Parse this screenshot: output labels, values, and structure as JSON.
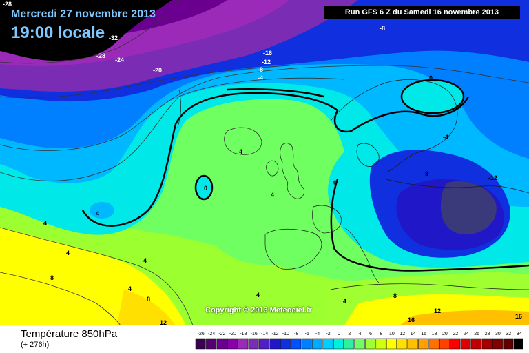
{
  "header": {
    "date": "Mercredi 27 novembre 2013",
    "hour": "19:00 locale",
    "run": "Run GFS 6 Z du Samedi 16 novembre 2013"
  },
  "copyright": "Copyright © 2013 Meteociel.fr",
  "legend": {
    "title": "Température 850hPa",
    "subtitle": "(+ 276h)",
    "scale": [
      {
        "value": "-26",
        "color": "#3a0050"
      },
      {
        "value": "-24",
        "color": "#550070"
      },
      {
        "value": "-22",
        "color": "#6b0090"
      },
      {
        "value": "-20",
        "color": "#8800a8"
      },
      {
        "value": "-18",
        "color": "#9b2ab8"
      },
      {
        "value": "-16",
        "color": "#7a2cb4"
      },
      {
        "value": "-14",
        "color": "#5020c0"
      },
      {
        "value": "-12",
        "color": "#2018c8"
      },
      {
        "value": "-10",
        "color": "#1030e0"
      },
      {
        "value": "-8",
        "color": "#0050ff"
      },
      {
        "value": "-6",
        "color": "#0080ff"
      },
      {
        "value": "-4",
        "color": "#00aaff"
      },
      {
        "value": "-2",
        "color": "#00d0ff"
      },
      {
        "value": "0",
        "color": "#00f0e0"
      },
      {
        "value": "2",
        "color": "#30f0a0"
      },
      {
        "value": "4",
        "color": "#70ff60"
      },
      {
        "value": "6",
        "color": "#a0ff30"
      },
      {
        "value": "8",
        "color": "#d0ff10"
      },
      {
        "value": "10",
        "color": "#ffff00"
      },
      {
        "value": "12",
        "color": "#ffe000"
      },
      {
        "value": "14",
        "color": "#ffc000"
      },
      {
        "value": "16",
        "color": "#ffa000"
      },
      {
        "value": "18",
        "color": "#ff7000"
      },
      {
        "value": "20",
        "color": "#ff4000"
      },
      {
        "value": "22",
        "color": "#ff0000"
      },
      {
        "value": "24",
        "color": "#e00000"
      },
      {
        "value": "26",
        "color": "#c00000"
      },
      {
        "value": "28",
        "color": "#a00000"
      },
      {
        "value": "30",
        "color": "#800000"
      },
      {
        "value": "32",
        "color": "#600000"
      },
      {
        "value": "34",
        "color": "#000000"
      }
    ]
  },
  "isotherm_labels": [
    "-28",
    "-32",
    "-28",
    "-24",
    "-20",
    "-16",
    "-12",
    "-8",
    "-4",
    "-8",
    "0",
    "4",
    "0",
    "0",
    "-4",
    "-8",
    "-12",
    "-4",
    "4",
    "4",
    "4",
    "4",
    "4",
    "8",
    "4",
    "8",
    "12",
    "4",
    "8",
    "12",
    "16",
    "16"
  ]
}
